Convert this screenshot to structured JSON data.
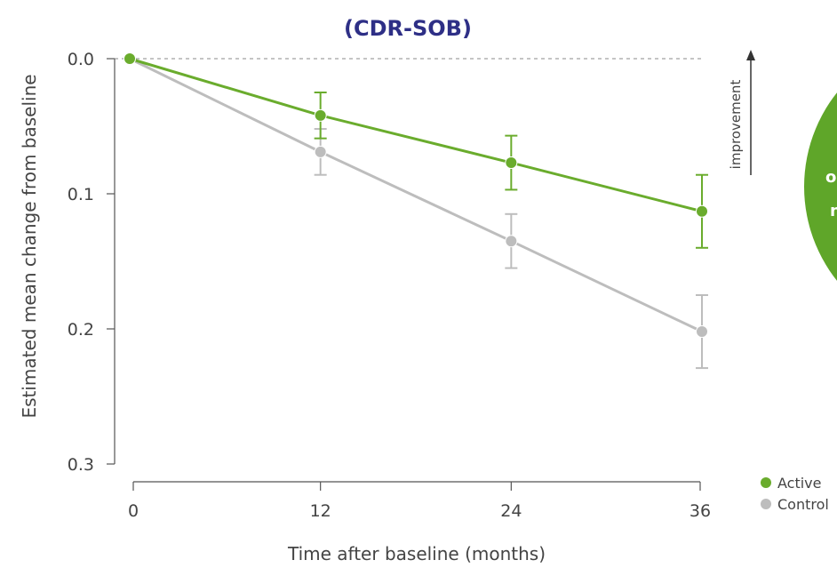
{
  "chart_data": {
    "type": "line",
    "title": "(CDR-SOB)",
    "xlabel": "Time after baseline (months)",
    "ylabel": "Estimated mean change from baseline",
    "x": [
      0,
      12,
      24,
      36
    ],
    "x_ticks": [
      "0",
      "12",
      "24",
      "36"
    ],
    "y_ticks": [
      "0.0",
      "0.1",
      "0.2",
      "0.3"
    ],
    "ylim": [
      0.0,
      0.3
    ],
    "y_inverted": true,
    "baseline_reference": 0.0,
    "annotation": "improvement",
    "legend_position": "bottom-right",
    "series": [
      {
        "name": "Control",
        "color": "#bdbdbd",
        "values": [
          0.0,
          0.069,
          0.135,
          0.202
        ],
        "error": [
          0.0,
          0.017,
          0.02,
          0.027
        ]
      },
      {
        "name": "Active",
        "color": "#6aac2d",
        "values": [
          0.0,
          0.042,
          0.077,
          0.113
        ],
        "error": [
          0.0,
          0.017,
          0.02,
          0.027
        ]
      }
    ]
  },
  "colors": {
    "title": "#2e2f86",
    "axis": "#555555",
    "bubble": "#5fa629"
  },
  "bubble": {
    "line1": "o",
    "line2": "n"
  }
}
